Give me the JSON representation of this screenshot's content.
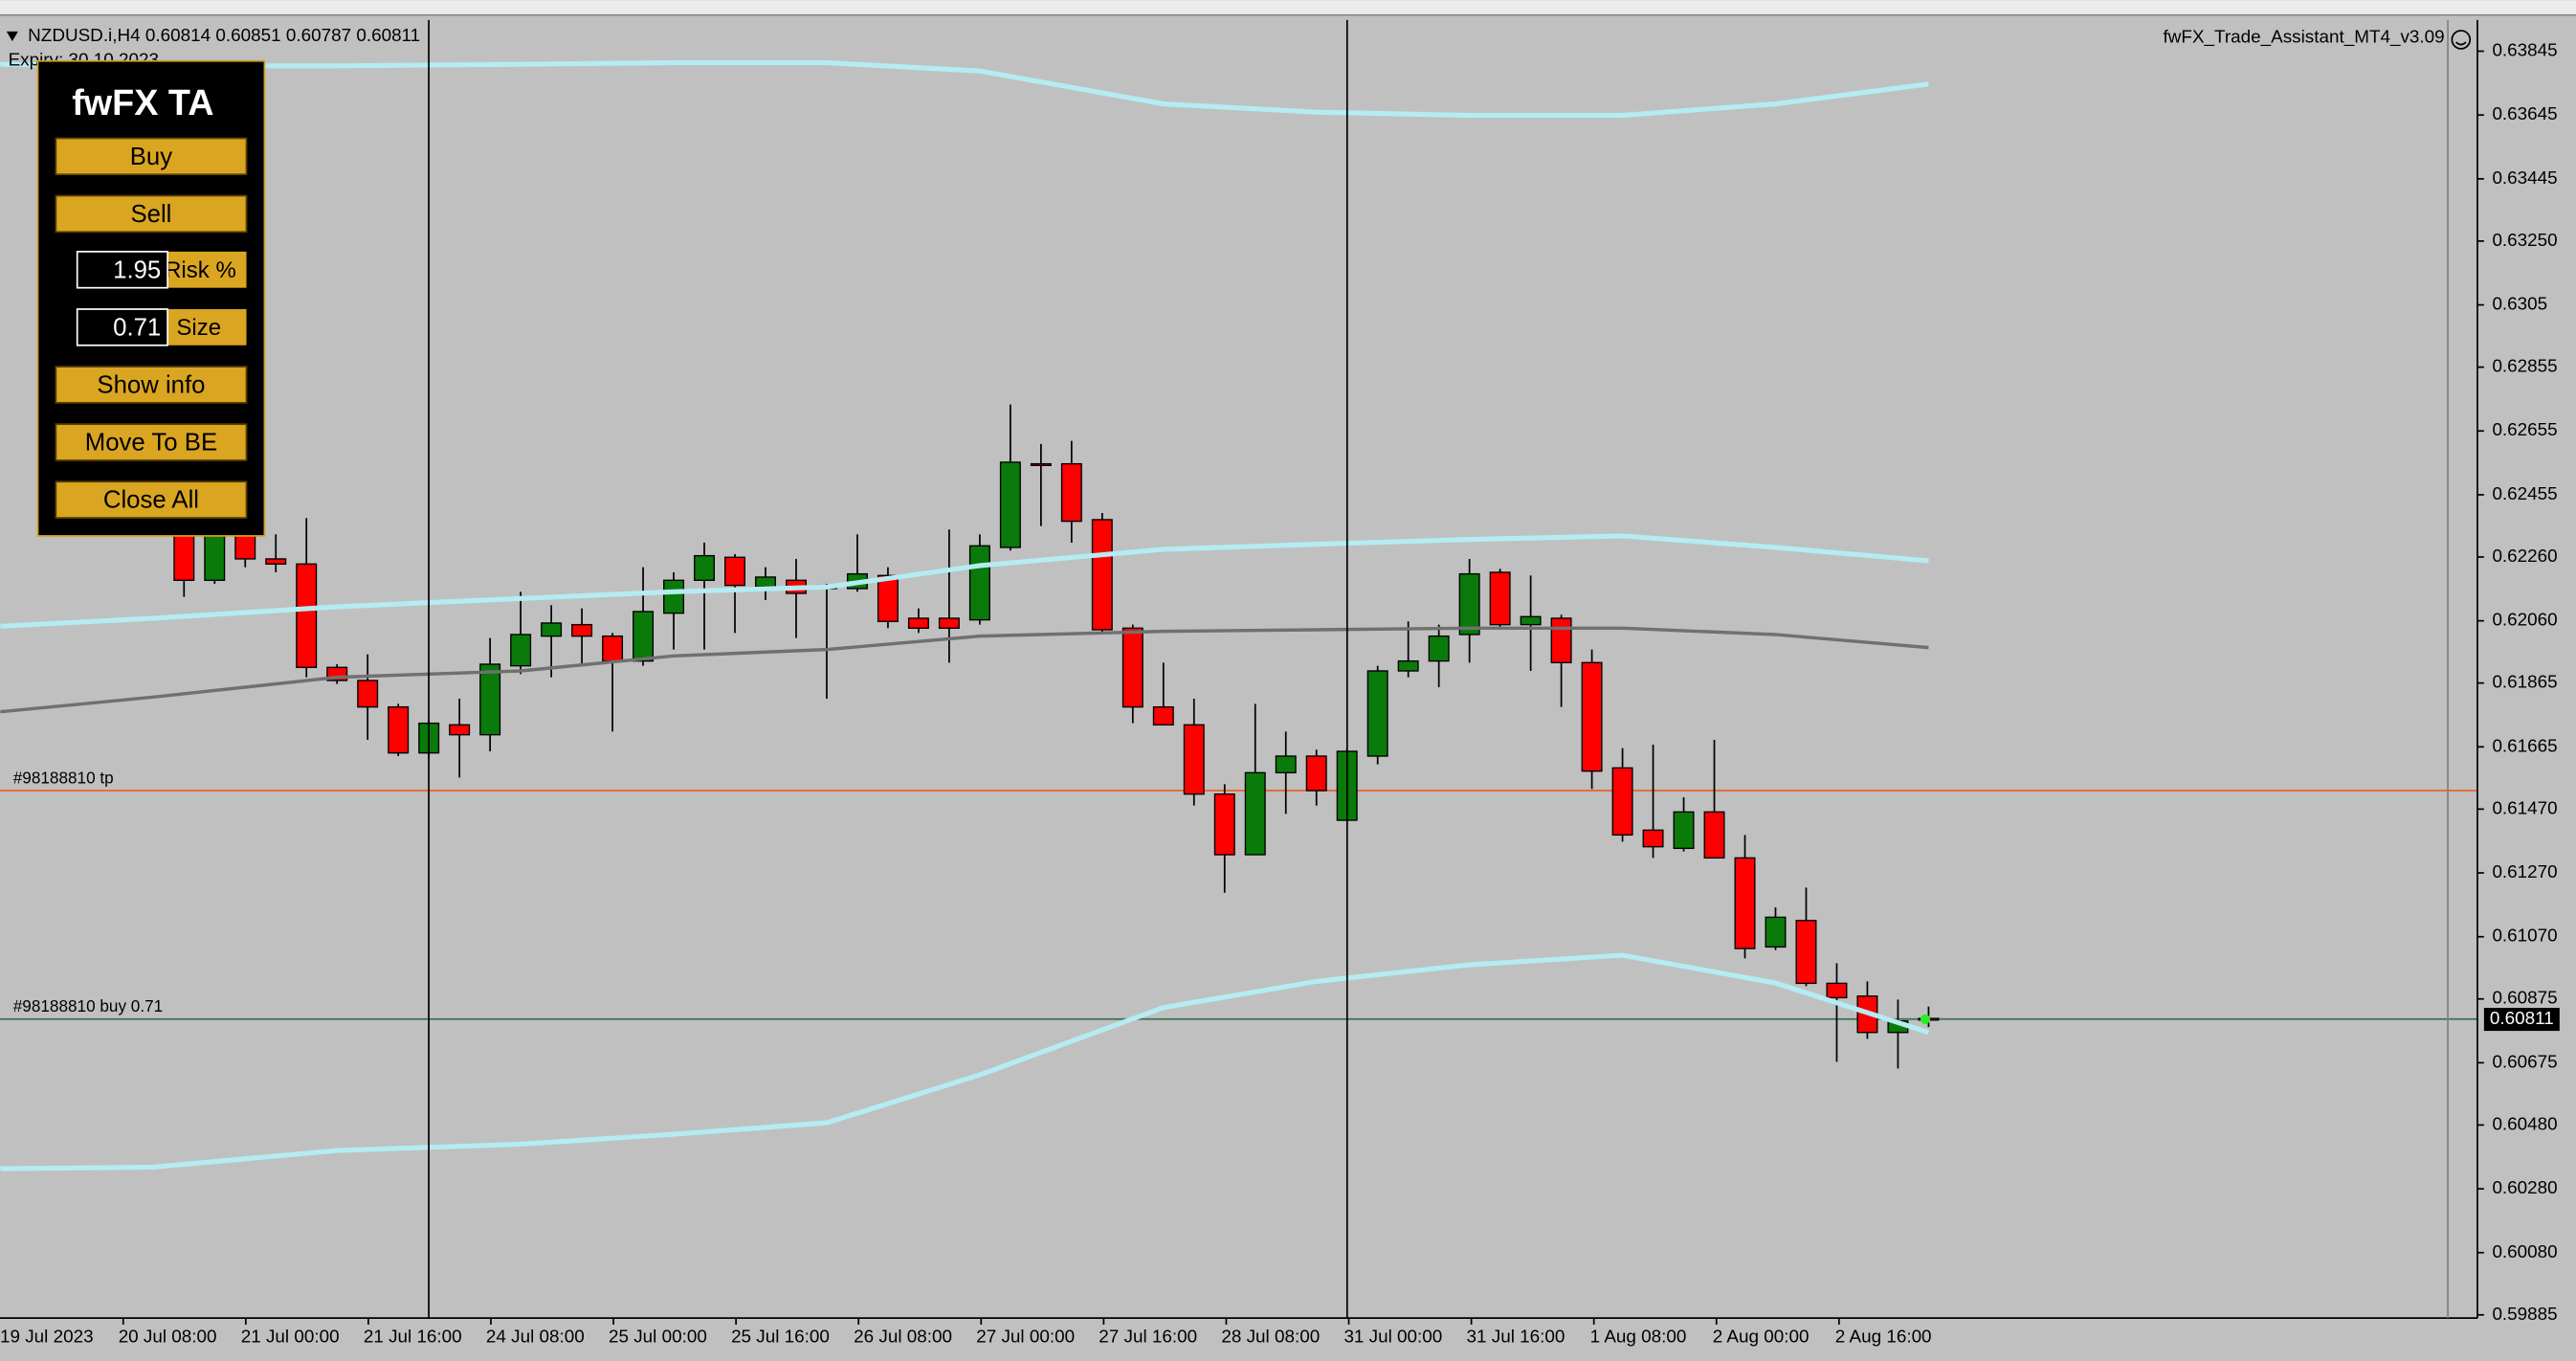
{
  "header": {
    "symbol": "NZDUSD.i,H4",
    "expiry": "Expiry: 30.10.2023",
    "indicator_name": "fwFX_Trade_Assistant_MT4_v3.09"
  },
  "panel": {
    "title": "fwFX TA",
    "buttons": [
      "Buy",
      "Sell"
    ],
    "inputs": [
      {
        "value": "1.95",
        "label": "Risk %"
      },
      {
        "value": "0.71",
        "label": "Size"
      }
    ],
    "actions": [
      "Show info",
      "Move To BE",
      "Close All"
    ]
  },
  "chart_data": {
    "type": "candlestick",
    "up_color": "#0a7a0a",
    "down_color": "#ff0000",
    "open": [
      0.62331,
      0.62187,
      0.62346,
      0.62254,
      0.62238,
      0.61914,
      0.61873,
      0.6179,
      0.61646,
      0.61734,
      0.61703,
      0.61919,
      0.62012,
      0.62048,
      0.62012,
      0.61934,
      0.62084,
      0.62187,
      0.62259,
      0.62166,
      0.62187,
      0.62171,
      0.62161,
      0.62202,
      0.62068,
      0.62068,
      0.62063,
      0.6229,
      0.62552,
      0.62552,
      0.62377,
      0.62037,
      0.6179,
      0.61734,
      0.61517,
      0.61327,
      0.61584,
      0.61636,
      0.61435,
      0.61636,
      0.61903,
      0.61934,
      0.62017,
      0.62212,
      0.62048,
      0.62068,
      0.61929,
      0.61599,
      0.61404,
      0.61347,
      0.61461,
      0.61317,
      0.61038,
      0.61121,
      0.60924,
      0.60884,
      0.6077,
      0.60814
    ],
    "high": [
      0.62408,
      0.62367,
      0.62357,
      0.62331,
      0.62382,
      0.61924,
      0.61955,
      0.618,
      0.61749,
      0.61816,
      0.62006,
      0.62151,
      0.62109,
      0.62099,
      0.62022,
      0.62228,
      0.62212,
      0.62305,
      0.62269,
      0.62228,
      0.62254,
      0.62176,
      0.62331,
      0.62228,
      0.62099,
      0.62346,
      0.62331,
      0.62738,
      0.62614,
      0.62624,
      0.62398,
      0.62048,
      0.61929,
      0.61816,
      0.61548,
      0.618,
      0.61713,
      0.61656,
      0.61661,
      0.61919,
      0.62058,
      0.62048,
      0.62254,
      0.62223,
      0.62202,
      0.62079,
      0.6197,
      0.61661,
      0.61672,
      0.61507,
      0.61687,
      0.61389,
      0.61162,
      0.61224,
      0.60987,
      0.6093,
      0.60873,
      0.60851
    ],
    "low": [
      0.62135,
      0.62176,
      0.62228,
      0.62212,
      0.61883,
      0.61862,
      0.61687,
      0.61636,
      0.61626,
      0.61569,
      0.61651,
      0.61893,
      0.61883,
      0.61919,
      0.61713,
      0.61919,
      0.6197,
      0.6197,
      0.62022,
      0.62125,
      0.62006,
      0.61816,
      0.62151,
      0.62037,
      0.62022,
      0.61929,
      0.62048,
      0.6228,
      0.62357,
      0.62305,
      0.62017,
      0.61739,
      0.61734,
      0.61481,
      0.61208,
      0.61327,
      0.61455,
      0.61481,
      0.6143,
      0.6161,
      0.61883,
      0.61852,
      0.61929,
      0.62037,
      0.61903,
      0.6179,
      0.61533,
      0.61368,
      0.61317,
      0.61337,
      0.61317,
      0.61002,
      0.61028,
      0.60915,
      0.60678,
      0.6075,
      0.60657,
      0.60787
    ],
    "close": [
      0.62187,
      0.62331,
      0.62254,
      0.62238,
      0.61914,
      0.61873,
      0.6179,
      0.61646,
      0.61739,
      0.61703,
      0.61924,
      0.62017,
      0.62053,
      0.62012,
      0.61934,
      0.62089,
      0.62187,
      0.62264,
      0.62171,
      0.62197,
      0.62146,
      0.62161,
      0.62207,
      0.62058,
      0.62037,
      0.62037,
      0.62295,
      0.62557,
      0.62547,
      0.62372,
      0.62032,
      0.6179,
      0.61734,
      0.61517,
      0.61327,
      0.61584,
      0.61636,
      0.61528,
      0.61651,
      0.61903,
      0.61934,
      0.62012,
      0.62207,
      0.62048,
      0.62073,
      0.61929,
      0.61589,
      0.61389,
      0.61352,
      0.61461,
      0.61317,
      0.61033,
      0.61131,
      0.60924,
      0.60879,
      0.6077,
      0.60806,
      0.60811
    ],
    "indicators": [
      {
        "color": "#b4ecf2",
        "x": [
          -6,
          -1,
          5,
          11,
          16,
          21,
          26,
          32,
          37,
          42,
          47,
          52,
          57
        ],
        "values": [
          0.63804,
          0.63799,
          0.63799,
          0.63804,
          0.63809,
          0.63809,
          0.63783,
          0.6368,
          0.63654,
          0.63644,
          0.63644,
          0.6368,
          0.63742
        ]
      },
      {
        "color": "#b4ecf2",
        "x": [
          -6,
          -1,
          5,
          11,
          16,
          21,
          26,
          32,
          37,
          42,
          47,
          52,
          57
        ],
        "values": [
          0.62043,
          0.62068,
          0.62104,
          0.6213,
          0.62151,
          0.62166,
          0.62233,
          0.62284,
          0.623,
          0.62315,
          0.62326,
          0.6229,
          0.62248
        ]
      },
      {
        "color": "#707070",
        "x": [
          -6,
          -1,
          5,
          11,
          16,
          21,
          26,
          32,
          37,
          42,
          47,
          52,
          57
        ],
        "values": [
          0.61775,
          0.61821,
          0.61883,
          0.61903,
          0.6195,
          0.6197,
          0.62012,
          0.62027,
          0.62032,
          0.62037,
          0.62037,
          0.62017,
          0.61976
        ]
      },
      {
        "color": "#b4ecf2",
        "x": [
          -6,
          -1,
          5,
          11,
          16,
          21,
          26,
          32,
          37,
          42,
          47,
          52,
          57
        ],
        "values": [
          0.60343,
          0.60348,
          0.604,
          0.6042,
          0.60451,
          0.60487,
          0.60637,
          0.60848,
          0.6093,
          0.60982,
          0.61012,
          0.60925,
          0.6077
        ]
      }
    ],
    "hlines": [
      {
        "label": "#98188810 tp",
        "value": 0.61528,
        "color": "#f0602a"
      },
      {
        "label": "#98188810 buy 0.71",
        "value": 0.60812,
        "color": "#3a6e5a"
      }
    ],
    "xtick_labels": [
      "19 Jul 2023",
      "20 Jul 08:00",
      "21 Jul 00:00",
      "21 Jul 16:00",
      "24 Jul 08:00",
      "25 Jul 00:00",
      "25 Jul 16:00",
      "26 Jul 08:00",
      "27 Jul 00:00",
      "27 Jul 16:00",
      "28 Jul 08:00",
      "31 Jul 00:00",
      "31 Jul 16:00",
      "1 Aug 08:00",
      "2 Aug 00:00",
      "2 Aug 16:00"
    ],
    "ylim": [
      0.59875,
      0.63943
    ],
    "yticks": [
      0.63845,
      0.63645,
      0.63445,
      {
        "value": 0.6325,
        "label": "0.63250"
      },
      0.6305,
      0.62855,
      0.62655,
      0.62455,
      {
        "value": 0.6226,
        "label": "0.62260"
      },
      {
        "value": 0.6206,
        "label": "0.62060"
      },
      0.61865,
      0.61665,
      {
        "value": 0.6147,
        "label": "0.61470"
      },
      {
        "value": 0.6127,
        "label": "0.61270"
      },
      {
        "value": 0.6107,
        "label": "0.61070"
      },
      0.60875,
      0.60675,
      {
        "value": 0.6048,
        "label": "0.60480"
      },
      {
        "value": 0.6028,
        "label": "0.60280"
      },
      {
        "value": 0.6008,
        "label": "0.60080"
      },
      0.59885
    ]
  }
}
